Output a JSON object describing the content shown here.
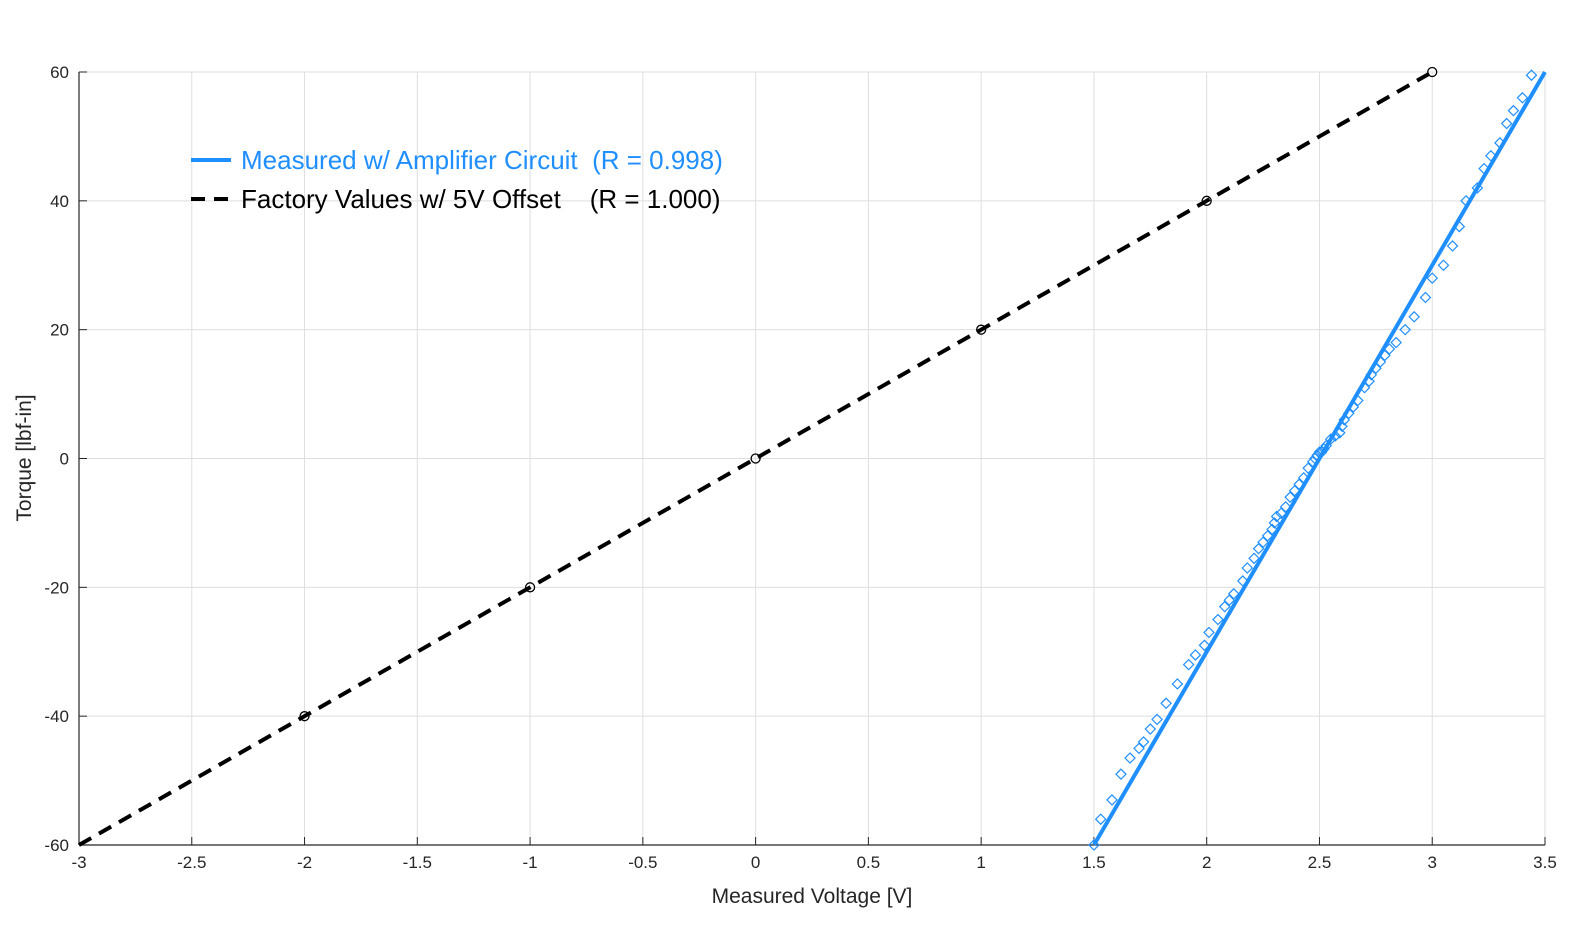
{
  "chart_data": {
    "type": "line",
    "title": "",
    "xlabel": "Measured Voltage [V]",
    "ylabel": "Torque [lbf-in]",
    "xlim": [
      -3,
      3.5
    ],
    "ylim": [
      -60,
      60
    ],
    "x_ticks": [
      -3,
      -2.5,
      -2,
      -1.5,
      -1,
      -0.5,
      0,
      0.5,
      1,
      1.5,
      2,
      2.5,
      3,
      3.5
    ],
    "x_tick_labels": [
      "-3",
      "-2.5",
      "-2",
      "-1.5",
      "-1",
      "-0.5",
      "0",
      "0.5",
      "1",
      "1.5",
      "2",
      "2.5",
      "3",
      "3.5"
    ],
    "y_ticks": [
      -60,
      -40,
      -20,
      0,
      20,
      40,
      60
    ],
    "y_tick_labels": [
      "-60",
      "-40",
      "-20",
      "0",
      "20",
      "40",
      "60"
    ],
    "grid": true,
    "legend_position": "top-left",
    "colors": {
      "measured": "#1f8fff",
      "factory": "#000000",
      "grid": "#dedede",
      "axis": "#262626"
    },
    "series": [
      {
        "name": "Measured w/ Amplifier Circuit",
        "legend_label": "Measured w/ Amplifier Circuit  (R = 0.998)",
        "style": "solid",
        "fit_line": {
          "x": [
            1.5,
            3.5
          ],
          "y": [
            -60,
            60
          ]
        },
        "markers": "diamond",
        "x": [
          1.5,
          1.53,
          1.58,
          1.62,
          1.66,
          1.7,
          1.72,
          1.75,
          1.78,
          1.82,
          1.87,
          1.92,
          1.95,
          1.99,
          2.01,
          2.05,
          2.08,
          2.1,
          2.12,
          2.16,
          2.18,
          2.21,
          2.23,
          2.25,
          2.27,
          2.29,
          2.3,
          2.31,
          2.33,
          2.35,
          2.37,
          2.39,
          2.41,
          2.43,
          2.45,
          2.47,
          2.48,
          2.49,
          2.5,
          2.51,
          2.52,
          2.53,
          2.55,
          2.57,
          2.59,
          2.6,
          2.61,
          2.63,
          2.65,
          2.67,
          2.7,
          2.72,
          2.73,
          2.75,
          2.77,
          2.79,
          2.81,
          2.84,
          2.88,
          2.92,
          2.97,
          3.0,
          3.05,
          3.09,
          3.12,
          3.15,
          3.2,
          3.23,
          3.26,
          3.3,
          3.33,
          3.36,
          3.4,
          3.44
        ],
        "y": [
          -60,
          -56,
          -53,
          -49,
          -46.5,
          -45,
          -44,
          -42,
          -40.5,
          -38,
          -35,
          -32,
          -30.5,
          -29,
          -27,
          -25,
          -23,
          -22,
          -21,
          -19,
          -17,
          -15.5,
          -14,
          -13,
          -12,
          -11,
          -10,
          -9,
          -8.5,
          -7.5,
          -6,
          -5,
          -4,
          -3,
          -1.5,
          -0.5,
          0,
          0.5,
          1,
          1,
          1.5,
          2,
          3,
          3.5,
          4,
          5,
          6,
          7,
          8,
          9,
          11,
          12,
          13,
          14,
          15,
          16,
          17,
          18,
          20,
          22,
          25,
          28,
          30,
          33,
          36,
          40,
          42,
          45,
          47,
          49,
          52,
          54,
          56,
          59.5
        ]
      },
      {
        "name": "Factory Values w/ 5V Offset",
        "legend_label": "Factory Values w/ 5V Offset    (R = 1.000)",
        "style": "dashed",
        "markers": "circle",
        "line_x": [
          -3,
          3
        ],
        "line_y": [
          -60,
          60
        ],
        "x": [
          -2,
          -1,
          0,
          1,
          2,
          3
        ],
        "y": [
          -40,
          -20,
          0,
          20,
          40,
          60
        ]
      }
    ]
  }
}
